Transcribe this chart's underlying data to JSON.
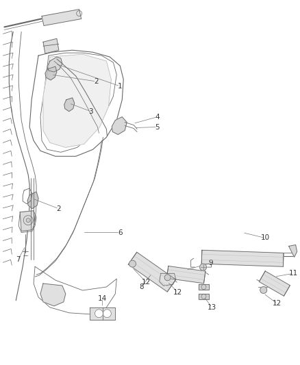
{
  "bg_color": "#ffffff",
  "line_color": "#666666",
  "dark_line": "#444444",
  "light_line": "#999999",
  "fill_light": "#e8e8e8",
  "fill_mid": "#d8d8d8",
  "fig_width": 4.38,
  "fig_height": 5.33,
  "dpi": 100,
  "label_fontsize": 7.5,
  "label_color": "#333333",
  "leader_color": "#777777"
}
